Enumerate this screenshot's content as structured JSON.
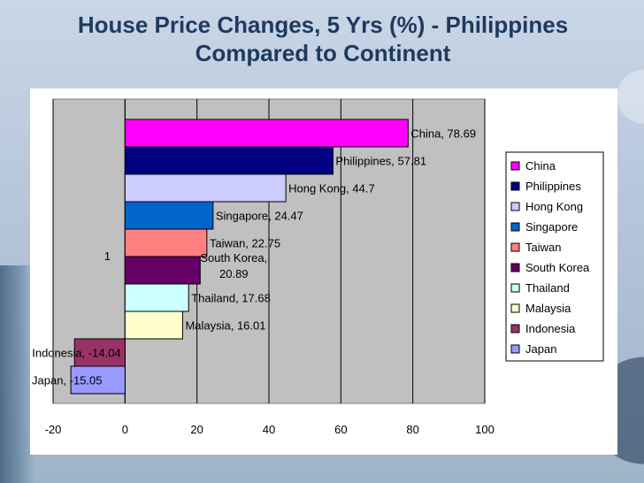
{
  "slide": {
    "title_line1": "House Price Changes, 5 Yrs (%) - Philippines",
    "title_line2": "Compared to Continent"
  },
  "chart_data": {
    "type": "bar",
    "orientation": "horizontal",
    "category_axis_label": "1",
    "xlim": [
      -20,
      100
    ],
    "xticks": [
      -20,
      0,
      20,
      40,
      60,
      80,
      100
    ],
    "grid": true,
    "legend_position": "right",
    "plot_background": "#c0c0c0",
    "series": [
      {
        "name": "China",
        "value": 78.69,
        "label": "China, 78.69",
        "color": "#ff00ff"
      },
      {
        "name": "Philippines",
        "value": 57.81,
        "label": "Philippines, 57.81",
        "color": "#000080"
      },
      {
        "name": "Hong Kong",
        "value": 44.7,
        "label": "Hong Kong, 44.7",
        "color": "#ccccff"
      },
      {
        "name": "Singapore",
        "value": 24.47,
        "label": "Singapore, 24.47",
        "color": "#0066cc"
      },
      {
        "name": "Taiwan",
        "value": 22.75,
        "label": "Taiwan, 22.75",
        "color": "#ff8080"
      },
      {
        "name": "South Korea",
        "value": 20.89,
        "label": "South Korea,\n20.89",
        "color": "#660066"
      },
      {
        "name": "Thailand",
        "value": 17.68,
        "label": "Thailand, 17.68",
        "color": "#ccffff"
      },
      {
        "name": "Malaysia",
        "value": 16.01,
        "label": "Malaysia, 16.01",
        "color": "#ffffcc"
      },
      {
        "name": "Indonesia",
        "value": -14.04,
        "label": "Indonesia, -14.04",
        "color": "#993366"
      },
      {
        "name": "Japan",
        "value": -15.05,
        "label": "Japan, -15.05",
        "color": "#9999ff"
      }
    ]
  }
}
